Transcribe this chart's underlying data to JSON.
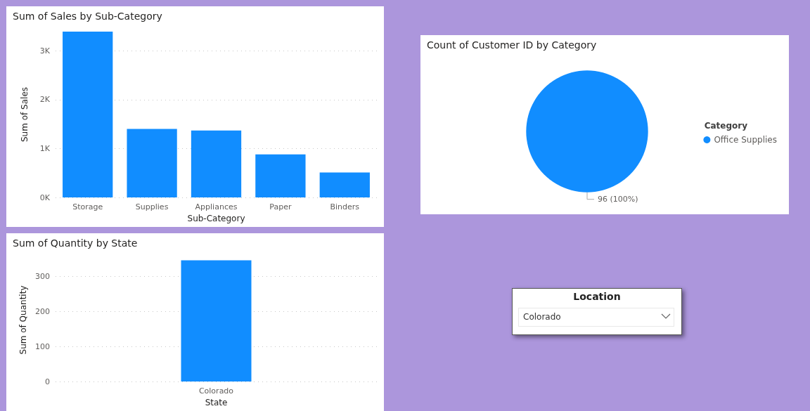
{
  "chart_data": [
    {
      "type": "bar",
      "title": "Sum of Sales by Sub-Category",
      "xlabel": "Sub-Category",
      "ylabel": "Sum of Sales",
      "categories": [
        "Storage",
        "Supplies",
        "Appliances",
        "Paper",
        "Binders"
      ],
      "values": [
        3390,
        1400,
        1370,
        880,
        510
      ],
      "color": "#118dff",
      "ylim": [
        0,
        3390
      ],
      "yticks": [
        {
          "value": 0,
          "label": "0K"
        },
        {
          "value": 1000,
          "label": "1K"
        },
        {
          "value": 2000,
          "label": "2K"
        },
        {
          "value": 3000,
          "label": "3K"
        }
      ],
      "grid": "y"
    },
    {
      "type": "pie",
      "title": "Count of Customer ID by Category",
      "legend_title": "Category",
      "categories": [
        "Office Supplies"
      ],
      "values": [
        96
      ],
      "colors": [
        "#118dff"
      ],
      "value_labels": [
        "96 (100%)"
      ],
      "legend": "right"
    },
    {
      "type": "bar",
      "title": "Sum of Quantity by State",
      "xlabel": "State",
      "ylabel": "Sum of Quantity",
      "categories": [
        "Colorado"
      ],
      "values": [
        345
      ],
      "color": "#118dff",
      "ylim": [
        0,
        350
      ],
      "yticks": [
        0,
        100,
        200,
        300
      ],
      "grid": "y"
    },
    {
      "type": "other",
      "title": "Location",
      "annotations": [
        "Colorado"
      ]
    }
  ]
}
